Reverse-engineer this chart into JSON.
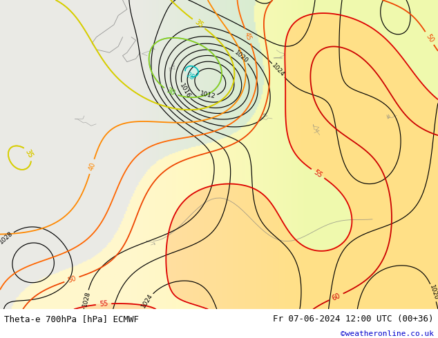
{
  "title_left": "Theta-e 700hPa [hPa] ECMWF",
  "title_right": "Fr 07-06-2024 12:00 UTC (00+36)",
  "watermark": "©weatheronline.co.uk",
  "watermark_color": "#0000cc",
  "bg_color": "#ffffff",
  "figsize": [
    6.34,
    4.9
  ],
  "dpi": 100,
  "label_font_size": 9,
  "watermark_font_size": 8
}
